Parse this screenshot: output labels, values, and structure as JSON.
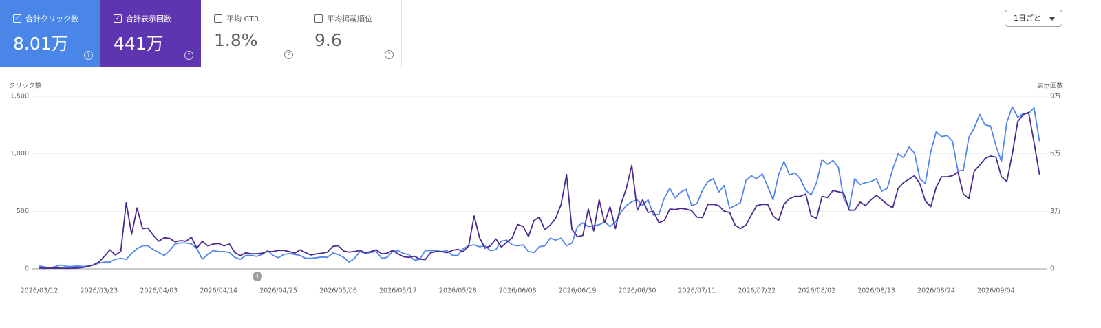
{
  "cards": [
    {
      "label": "合計クリック数",
      "value": "8.01万",
      "checked": true,
      "color": "#4a86e8"
    },
    {
      "label": "合計表示回数",
      "value": "441万",
      "checked": true,
      "color": "#5e35b1"
    },
    {
      "label": "平均 CTR",
      "value": "1.8%",
      "checked": false
    },
    {
      "label": "平均掲載順位",
      "value": "9.6",
      "checked": false
    }
  ],
  "interval": "1日ごと",
  "chart_data": {
    "type": "line",
    "y_label": "クリック数",
    "y2_label": "表示回数",
    "annotation": "1",
    "grid": true,
    "categories": [
      "2026/03/12",
      null,
      null,
      null,
      null,
      null,
      null,
      null,
      null,
      null,
      null,
      "2026/03/23",
      null,
      null,
      null,
      null,
      null,
      null,
      null,
      null,
      null,
      null,
      "2026/04/03",
      null,
      null,
      null,
      null,
      null,
      null,
      null,
      null,
      null,
      null,
      "2026/04/14",
      null,
      null,
      null,
      null,
      null,
      null,
      null,
      null,
      null,
      null,
      "2026/04/25",
      null,
      null,
      null,
      null,
      null,
      null,
      null,
      null,
      null,
      null,
      "2026/05/06",
      null,
      null,
      null,
      null,
      null,
      null,
      null,
      null,
      null,
      null,
      "2026/05/17",
      null,
      null,
      null,
      null,
      null,
      null,
      null,
      null,
      null,
      null,
      "2026/05/28",
      null,
      null,
      null,
      null,
      null,
      null,
      null,
      null,
      null,
      null,
      "2026/06/08",
      null,
      null,
      null,
      null,
      null,
      null,
      null,
      null,
      null,
      null,
      "2026/06/19",
      null,
      null,
      null,
      null,
      null,
      null,
      null,
      null,
      null,
      null,
      "2026/06/30",
      null,
      null,
      null,
      null,
      null,
      null,
      null,
      null,
      null,
      null,
      "2026/07/11",
      null,
      null,
      null,
      null,
      null,
      null,
      null,
      null,
      null,
      null,
      "2026/07/22",
      null,
      null,
      null,
      null,
      null,
      null,
      null,
      null,
      null,
      null,
      "2026/08/02",
      null,
      null,
      null,
      null,
      null,
      null,
      null,
      null,
      null,
      null,
      "2026/08/13",
      null,
      null,
      null,
      null,
      null,
      null,
      null,
      null,
      null,
      null,
      "2026/08/24",
      null,
      null,
      null,
      null,
      null,
      null,
      null,
      null,
      null,
      null,
      "2026/09/04",
      null,
      null,
      null,
      null,
      null,
      null,
      null,
      null
    ],
    "ylim": [
      0,
      1500
    ],
    "yticks": [
      0,
      500,
      {
        "value": 1000,
        "label": "1,000"
      },
      {
        "value": 1500,
        "label": "1,500"
      }
    ],
    "y2lim": [
      0,
      90000
    ],
    "y2ticks": [
      0,
      {
        "value": 30000,
        "label": "3万"
      },
      {
        "value": 60000,
        "label": "6万"
      },
      {
        "value": 90000,
        "label": "9万"
      }
    ],
    "series": [
      {
        "color": "#5086ec",
        "axis": "y2",
        "values": [
          1500,
          1000,
          500,
          1200,
          2000,
          1300,
          1200,
          1500,
          1200,
          1500,
          2000,
          3000,
          3500,
          3500,
          5000,
          5500,
          5000,
          8000,
          10500,
          12000,
          12000,
          10000,
          8500,
          7000,
          9500,
          13000,
          13500,
          13500,
          13000,
          10500,
          5000,
          7500,
          9500,
          9000,
          9000,
          8500,
          6000,
          5000,
          7000,
          7000,
          6500,
          7500,
          9500,
          7000,
          5800,
          7500,
          8000,
          7500,
          7000,
          5500,
          5500,
          5800,
          6200,
          6000,
          8300,
          7500,
          6000,
          3500,
          5500,
          9000,
          8000,
          8500,
          9000,
          5500,
          6000,
          9000,
          9500,
          8000,
          7500,
          4500,
          5000,
          9500,
          9500,
          9500,
          9000,
          9500,
          7000,
          7000,
          10500,
          12000,
          12500,
          11500,
          12000,
          9500,
          10000,
          14500,
          15000,
          12500,
          12000,
          12500,
          9000,
          8500,
          11500,
          12000,
          16000,
          15000,
          16000,
          12000,
          13500,
          22000,
          24000,
          22000,
          22500,
          23000,
          24500,
          22000,
          24500,
          29500,
          33000,
          35000,
          36000,
          33000,
          36000,
          28000,
          28500,
          37000,
          42000,
          37000,
          40000,
          41500,
          33000,
          34000,
          41000,
          45500,
          47000,
          40000,
          43500,
          31500,
          33000,
          34500,
          46000,
          48500,
          47000,
          49500,
          43000,
          36000,
          49000,
          56000,
          49000,
          50000,
          47000,
          41000,
          38500,
          45000,
          57000,
          54500,
          56500,
          53000,
          36500,
          32000,
          47000,
          44000,
          45000,
          45500,
          47000,
          40500,
          42000,
          52000,
          60000,
          58000,
          63500,
          60500,
          47000,
          44500,
          61000,
          71500,
          69000,
          69500,
          66500,
          51000,
          51500,
          68500,
          73500,
          80500,
          75000,
          74500,
          64000,
          56000,
          76500,
          84500,
          79000,
          81000,
          81000,
          84000,
          66500
        ]
      },
      {
        "color": "#4b2a8f",
        "values": [
          8,
          5,
          6,
          7,
          6,
          5,
          6,
          8,
          12,
          20,
          35,
          60,
          110,
          165,
          120,
          150,
          575,
          300,
          530,
          350,
          355,
          290,
          240,
          270,
          265,
          235,
          245,
          240,
          275,
          180,
          240,
          200,
          215,
          220,
          200,
          215,
          140,
          115,
          140,
          130,
          130,
          135,
          150,
          150,
          160,
          160,
          150,
          135,
          165,
          140,
          120,
          130,
          135,
          145,
          195,
          200,
          155,
          145,
          150,
          160,
          140,
          150,
          165,
          130,
          135,
          160,
          130,
          105,
          100,
          110,
          85,
          80,
          140,
          150,
          150,
          140,
          160,
          170,
          150,
          200,
          460,
          270,
          180,
          200,
          260,
          190,
          230,
          270,
          385,
          370,
          280,
          420,
          450,
          340,
          380,
          440,
          560,
          820,
          340,
          280,
          290,
          520,
          330,
          600,
          400,
          540,
          350,
          560,
          700,
          900,
          510,
          600,
          490,
          500,
          400,
          420,
          520,
          515,
          525,
          520,
          505,
          450,
          445,
          560,
          560,
          550,
          500,
          490,
          380,
          350,
          380,
          470,
          550,
          560,
          560,
          460,
          420,
          560,
          610,
          630,
          630,
          650,
          460,
          440,
          630,
          620,
          680,
          670,
          660,
          510,
          510,
          580,
          550,
          600,
          640,
          600,
          560,
          530,
          700,
          750,
          780,
          810,
          740,
          590,
          540,
          710,
          800,
          800,
          810,
          840,
          650,
          610,
          850,
          900,
          960,
          980,
          970,
          800,
          760,
          1000,
          1280,
          1340,
          1360,
          1100,
          820
        ]
      }
    ]
  }
}
